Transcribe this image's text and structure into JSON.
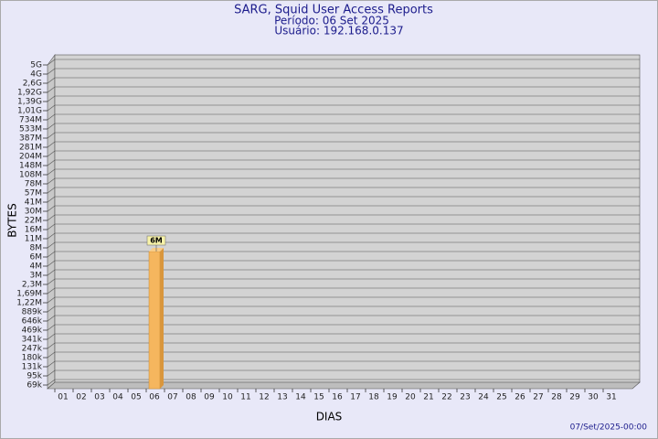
{
  "chart_data": {
    "type": "bar",
    "title": "SARG, Squid User Access Reports",
    "subtitle": [
      "Período: 06 Set 2025",
      "Usuário: 192.168.0.137"
    ],
    "y_label": "BYTES",
    "x_label": "DIAS",
    "footer": "07/Set/2025-00:00",
    "categories": [
      "01",
      "02",
      "03",
      "04",
      "05",
      "06",
      "07",
      "08",
      "09",
      "10",
      "11",
      "12",
      "13",
      "14",
      "15",
      "16",
      "17",
      "18",
      "19",
      "20",
      "21",
      "22",
      "23",
      "24",
      "25",
      "26",
      "27",
      "28",
      "29",
      "30",
      "31"
    ],
    "values": [
      0,
      0,
      0,
      0,
      0,
      6000000,
      0,
      0,
      0,
      0,
      0,
      0,
      0,
      0,
      0,
      0,
      0,
      0,
      0,
      0,
      0,
      0,
      0,
      0,
      0,
      0,
      0,
      0,
      0,
      0,
      0
    ],
    "value_labels": [
      null,
      null,
      null,
      null,
      null,
      "6M",
      null,
      null,
      null,
      null,
      null,
      null,
      null,
      null,
      null,
      null,
      null,
      null,
      null,
      null,
      null,
      null,
      null,
      null,
      null,
      null,
      null,
      null,
      null,
      null,
      null
    ],
    "color": "#f5b65e",
    "ylim": [
      0,
      5000000000
    ],
    "yticks": [
      {
        "value": 69000,
        "label": "69k"
      },
      {
        "value": 95000,
        "label": "95k"
      },
      {
        "value": 131000,
        "label": "131k"
      },
      {
        "value": 180000,
        "label": "180k"
      },
      {
        "value": 247000,
        "label": "247k"
      },
      {
        "value": 341000,
        "label": "341k"
      },
      {
        "value": 469000,
        "label": "469k"
      },
      {
        "value": 646000,
        "label": "646k"
      },
      {
        "value": 889000,
        "label": "889k"
      },
      {
        "value": 1220000,
        "label": "1,22M"
      },
      {
        "value": 1690000,
        "label": "1,69M"
      },
      {
        "value": 2300000,
        "label": "2,3M"
      },
      {
        "value": 3000000,
        "label": "3M"
      },
      {
        "value": 4000000,
        "label": "4M"
      },
      {
        "value": 6000000,
        "label": "6M"
      },
      {
        "value": 8000000,
        "label": "8M"
      },
      {
        "value": 11000000,
        "label": "11M"
      },
      {
        "value": 16000000,
        "label": "16M"
      },
      {
        "value": 22000000,
        "label": "22M"
      },
      {
        "value": 30000000,
        "label": "30M"
      },
      {
        "value": 41000000,
        "label": "41M"
      },
      {
        "value": 57000000,
        "label": "57M"
      },
      {
        "value": 78000000,
        "label": "78M"
      },
      {
        "value": 108000000,
        "label": "108M"
      },
      {
        "value": 148000000,
        "label": "148M"
      },
      {
        "value": 204000000,
        "label": "204M"
      },
      {
        "value": 281000000,
        "label": "281M"
      },
      {
        "value": 387000000,
        "label": "387M"
      },
      {
        "value": 533000000,
        "label": "533M"
      },
      {
        "value": 734000000,
        "label": "734M"
      },
      {
        "value": 1010000000,
        "label": "1,01G"
      },
      {
        "value": 1390000000,
        "label": "1,39G"
      },
      {
        "value": 1920000000,
        "label": "1,92G"
      },
      {
        "value": 2600000000,
        "label": "2,6G"
      },
      {
        "value": 4000000000,
        "label": "4G"
      },
      {
        "value": 5000000000,
        "label": "5G"
      }
    ],
    "grid": true
  }
}
